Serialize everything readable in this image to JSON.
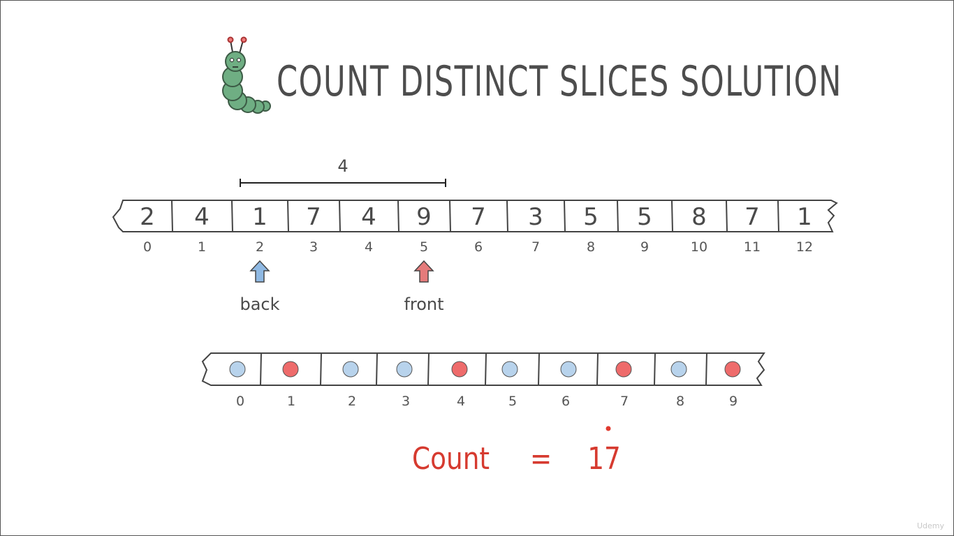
{
  "title": "COUNT DISTINCT SLICES SOLUTION",
  "top_array": {
    "values": [
      "2",
      "4",
      "1",
      "7",
      "4",
      "9",
      "7",
      "3",
      "5",
      "5",
      "8",
      "7",
      "1"
    ],
    "indices": [
      "0",
      "1",
      "2",
      "3",
      "4",
      "5",
      "6",
      "7",
      "8",
      "9",
      "10",
      "11",
      "12"
    ]
  },
  "window_length_label": "4",
  "back_label": "back",
  "front_label": "front",
  "back_index": 2,
  "front_index": 5,
  "seen_array": {
    "indices": [
      "0",
      "1",
      "2",
      "3",
      "4",
      "5",
      "6",
      "7",
      "8",
      "9"
    ],
    "states": [
      "blue",
      "red",
      "blue",
      "blue",
      "red",
      "blue",
      "blue",
      "red",
      "blue",
      "red"
    ]
  },
  "count": {
    "label": "Count",
    "equals": "=",
    "value": "17"
  },
  "colors": {
    "blue": "#b8d3ec",
    "red": "#ee6b6b",
    "count_text": "#d63a2f",
    "caterpillar": "#6fae83"
  },
  "watermark": "Udemy"
}
